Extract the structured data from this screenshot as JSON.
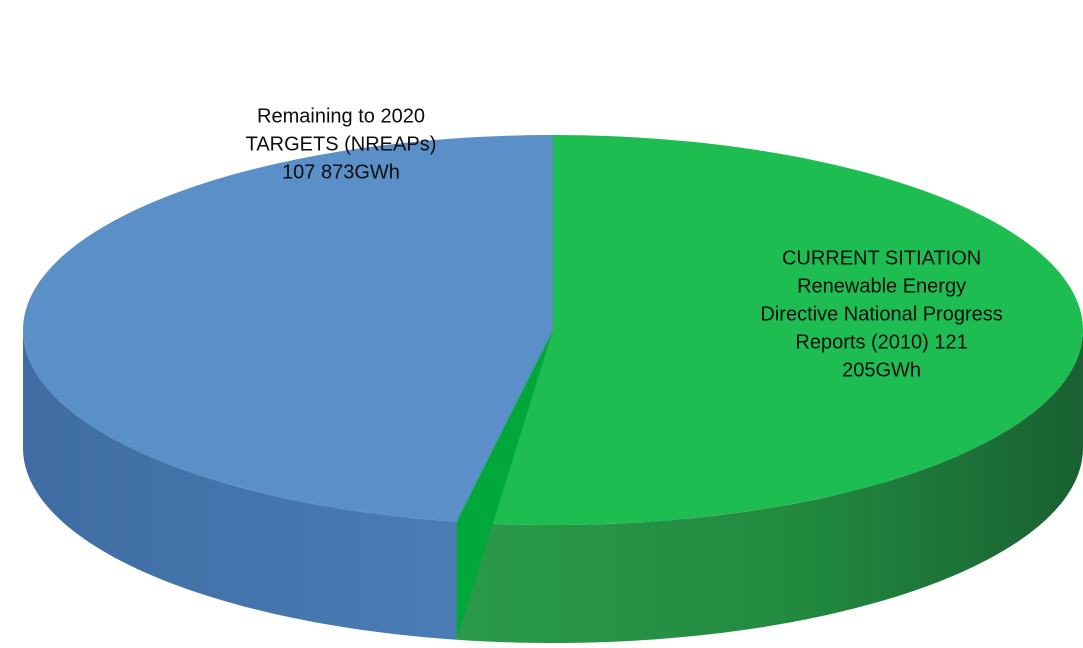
{
  "chart_data": {
    "type": "pie",
    "style": "3d",
    "title": "",
    "slices": [
      {
        "value": 121205,
        "color": "#1ebd52",
        "label_lines": [
          "CURRENT SITIATION",
          "Renewable Energy",
          "Directive National Progress",
          "Reports (2010) 121",
          "205GWh"
        ]
      },
      {
        "value": 107873,
        "color": "#5b8fc7",
        "label_lines": [
          "Remaining to 2020",
          "TARGETS (NREAPs)",
          "107 873GWh"
        ]
      }
    ],
    "unit": "GWh",
    "legend": "none"
  }
}
